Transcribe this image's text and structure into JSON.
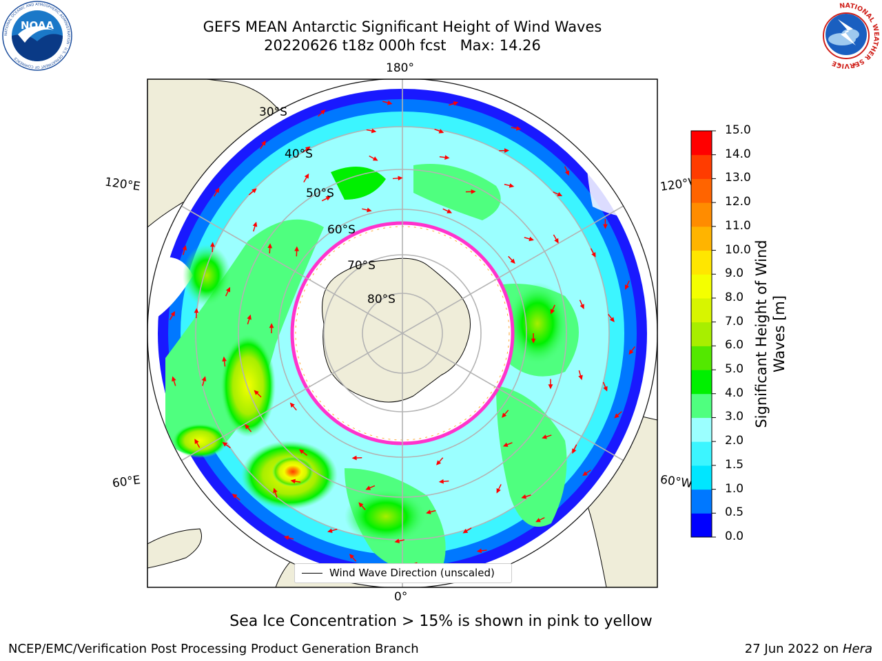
{
  "header": {
    "title_line1": "GEFS MEAN Antarctic Significant Height of Wind Waves",
    "title_line2": "20220626 t18z 000h fcst   Max: 14.26"
  },
  "map": {
    "projection": "south-polar-stereographic",
    "longitude_labels": {
      "top": "180°",
      "bottom": "0°",
      "left_upper": "120°E",
      "left_lower": "60°E",
      "right_upper": "120°W",
      "right_lower": "60°W"
    },
    "latitude_labels": [
      "30°S",
      "40°S",
      "50°S",
      "60°S",
      "70°S",
      "80°S"
    ],
    "max_value": 14.26,
    "land_color": "#efedd9",
    "sea_ice_color": "#ff33cc",
    "arrow_color": "#ff0000"
  },
  "legend": {
    "entry": "Wind Wave Direction (unscaled)"
  },
  "colorbar": {
    "title_line1": "Significant Height of Wind",
    "title_line2": "Waves [m]",
    "ticks": [
      "0.0",
      "0.5",
      "1.0",
      "1.5",
      "2.0",
      "3.0",
      "4.0",
      "5.0",
      "6.0",
      "7.0",
      "8.0",
      "9.0",
      "10.0",
      "11.0",
      "12.0",
      "13.0",
      "14.0",
      "15.0"
    ],
    "colors": [
      "#0000ff",
      "#0078ff",
      "#00e6ff",
      "#3cf5ff",
      "#9bffff",
      "#4fff7f",
      "#00f000",
      "#53e800",
      "#a8ee00",
      "#d7f500",
      "#f4ff00",
      "#ffe600",
      "#ffb400",
      "#ff8c00",
      "#ff6400",
      "#ff3c00",
      "#ff0000"
    ]
  },
  "footer": {
    "sea_ice_note": "Sea Ice Concentration > 15% is shown in pink to yellow",
    "credit": "NCEP/EMC/Verification Post Processing Product Generation Branch",
    "date": "27 Jun 2022 on",
    "host": "Hera"
  },
  "logos": {
    "noaa": "NOAA",
    "noaa_ring_text": "NATIONAL OCEANIC AND ATMOSPHERIC ADMINISTRATION · U.S. DEPARTMENT OF COMMERCE",
    "nws_ring_text": "NATIONAL WEATHER SERVICE"
  }
}
